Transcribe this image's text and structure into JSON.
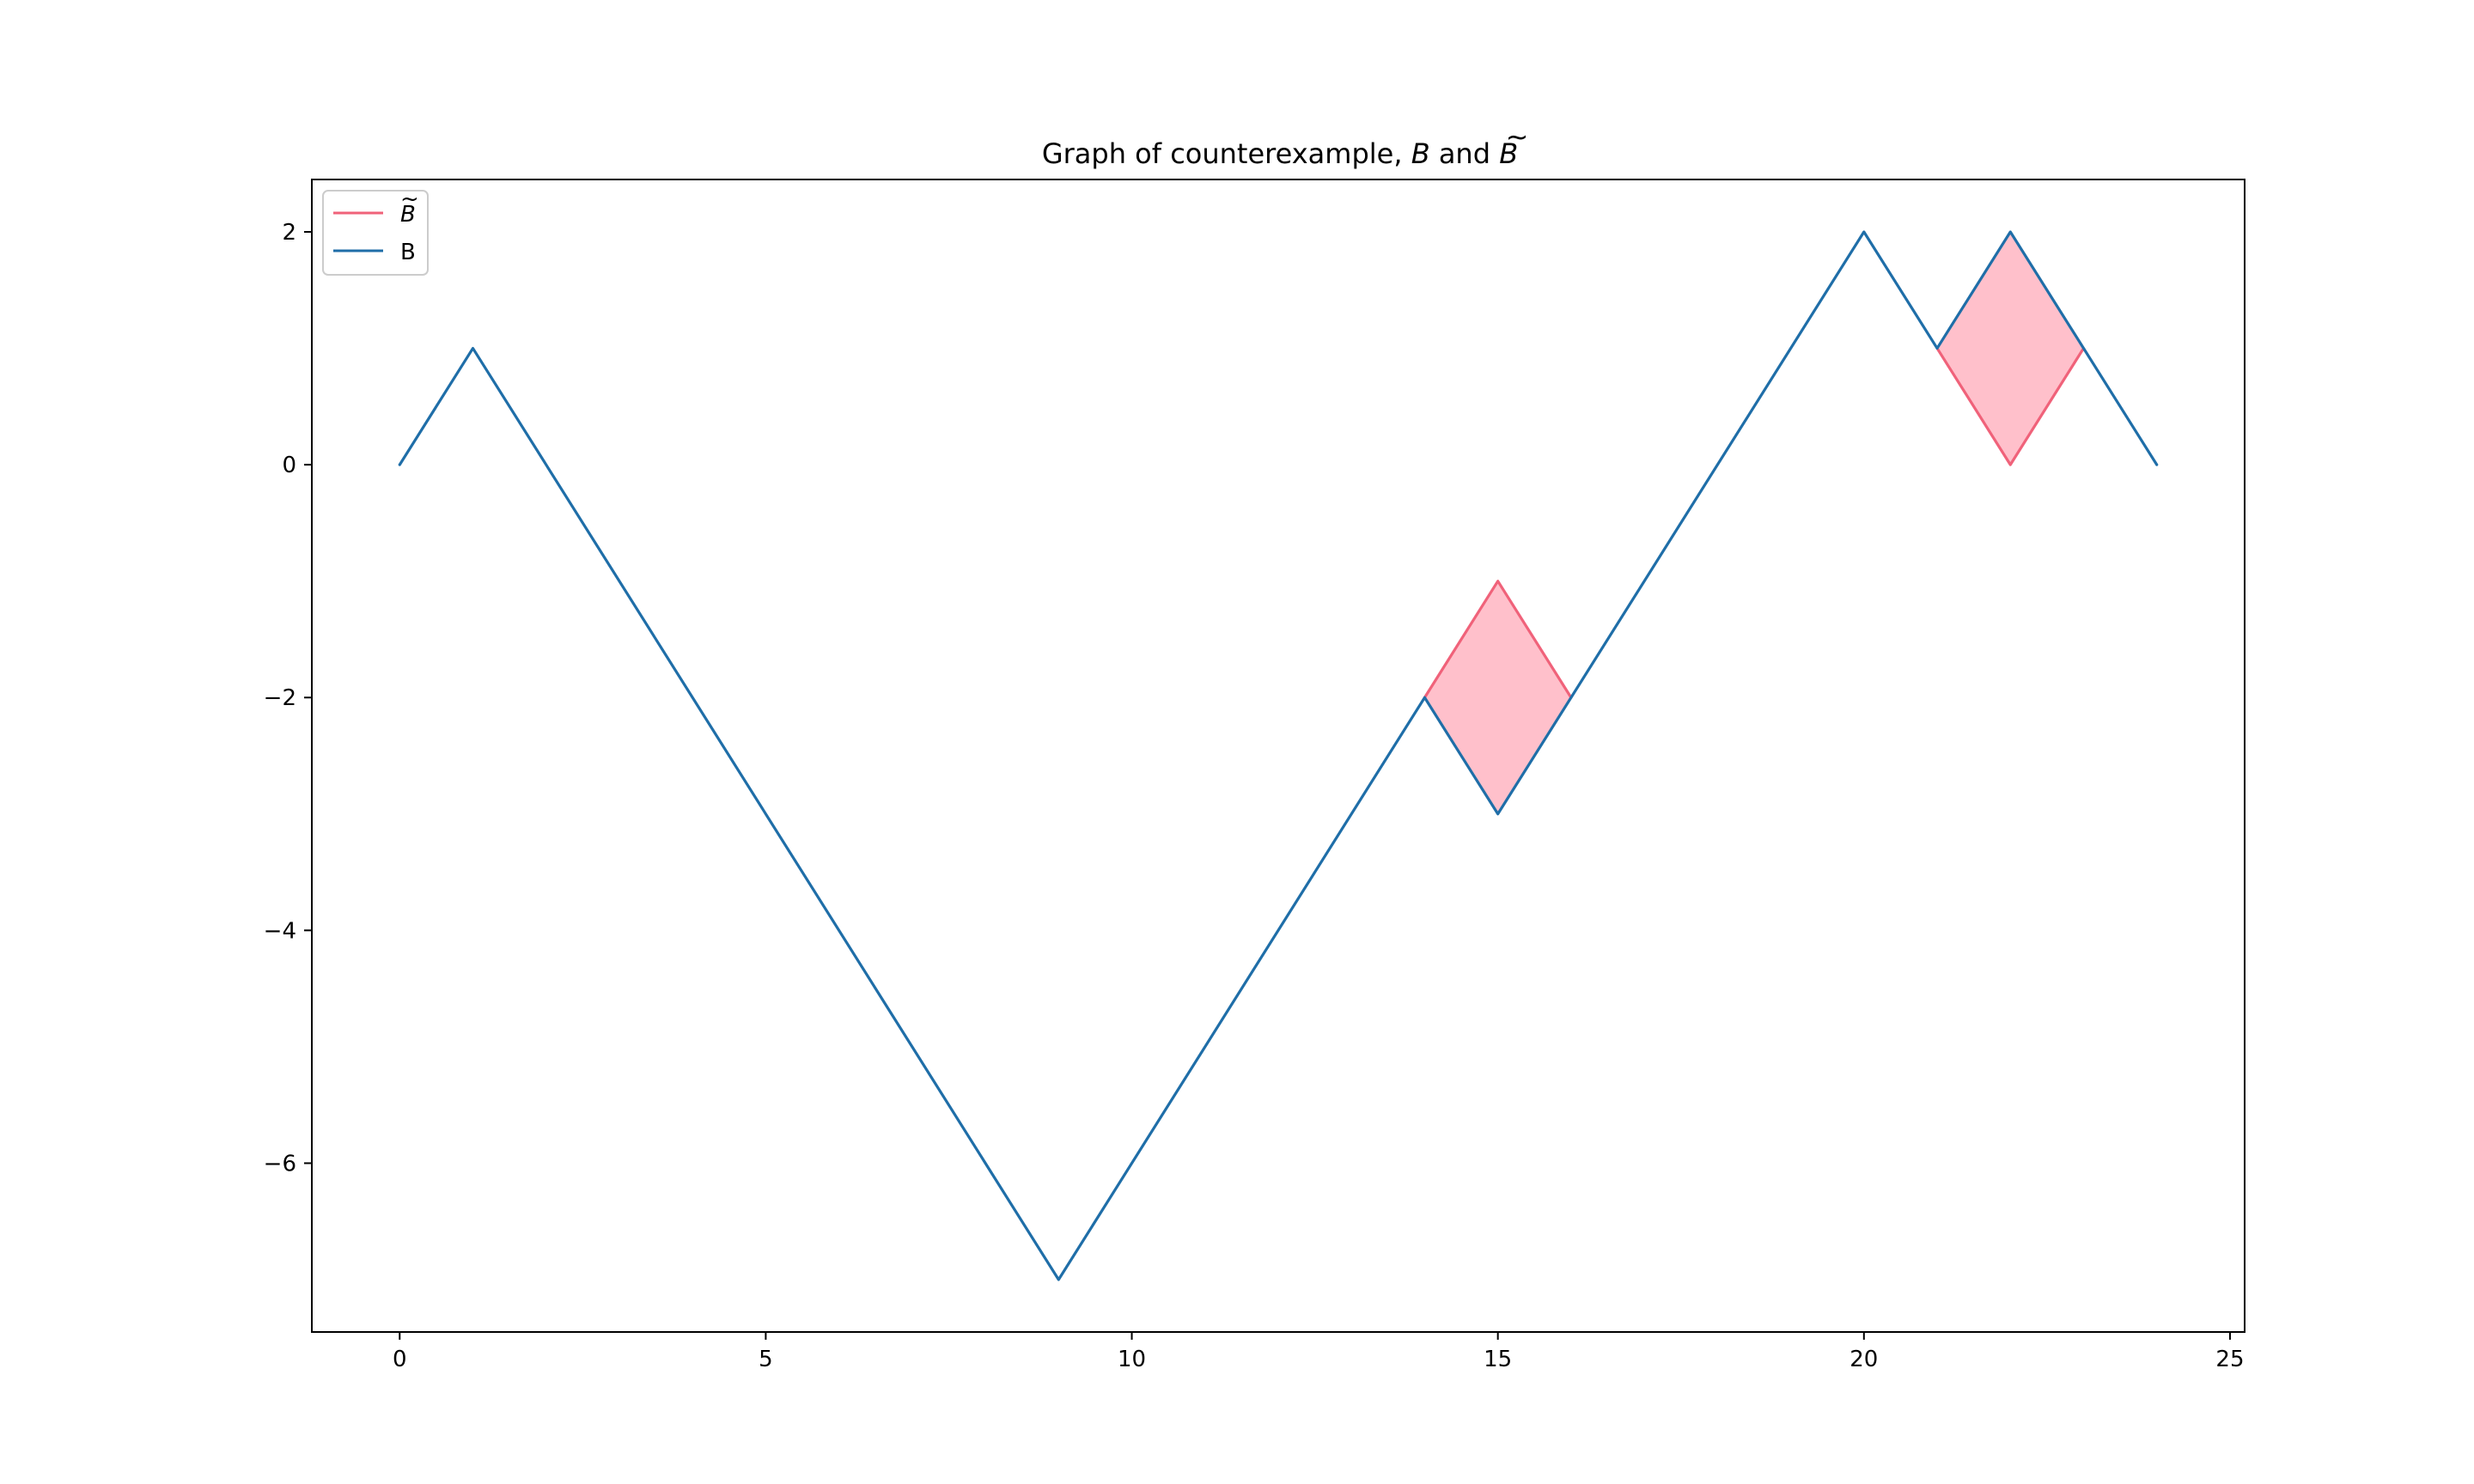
{
  "chart_data": {
    "type": "line",
    "title": "Graph of counterexample, B and B̃",
    "title_parts": {
      "prefix": "Graph of counterexample, ",
      "b_symbol": "B",
      "middle": " and ",
      "b_tilde_symbol": "B",
      "tilde_mark": "~"
    },
    "xlabel": "",
    "ylabel": "",
    "xlim": [
      -1.2,
      25.2
    ],
    "ylim": [
      -7.45,
      2.45
    ],
    "x_ticks": [
      0,
      5,
      10,
      15,
      20,
      25
    ],
    "x_tick_labels": [
      "0",
      "5",
      "10",
      "15",
      "20",
      "25"
    ],
    "y_ticks": [
      2,
      0,
      -2,
      -4,
      -6
    ],
    "y_tick_labels": [
      "2",
      "0",
      "−2",
      "−4",
      "−6"
    ],
    "grid": false,
    "legend_position": "top-left",
    "series": [
      {
        "key": "b_tilde",
        "name": "B̃",
        "legend_symbol": "B",
        "legend_tilde": "~",
        "color": "#f0627a",
        "x": [
          14,
          15,
          16,
          21,
          22,
          23
        ],
        "y": [
          -2,
          -1,
          -2,
          1,
          0,
          1
        ],
        "segments": [
          {
            "x": [
              14,
              15,
              16
            ],
            "y": [
              -2,
              -1,
              -2
            ]
          },
          {
            "x": [
              21,
              22,
              23
            ],
            "y": [
              1,
              0,
              1
            ]
          }
        ]
      },
      {
        "key": "b",
        "name": "B",
        "color": "#1f6ea8",
        "x": [
          0,
          1,
          9,
          14,
          15,
          20,
          21,
          22,
          24
        ],
        "y": [
          0,
          1,
          -7,
          -2,
          -3,
          2,
          1,
          2,
          0
        ]
      }
    ],
    "fills": [
      {
        "color": "#ffc0cb",
        "between": "B and B̃",
        "x": [
          14,
          15,
          16
        ],
        "upper": [
          -2,
          -1,
          -2
        ],
        "lower": [
          -2,
          -3,
          -2
        ]
      },
      {
        "color": "#ffc0cb",
        "between": "B and B̃",
        "x": [
          21,
          22,
          23
        ],
        "upper": [
          1,
          2,
          1
        ],
        "lower": [
          1,
          0,
          1
        ]
      }
    ]
  }
}
